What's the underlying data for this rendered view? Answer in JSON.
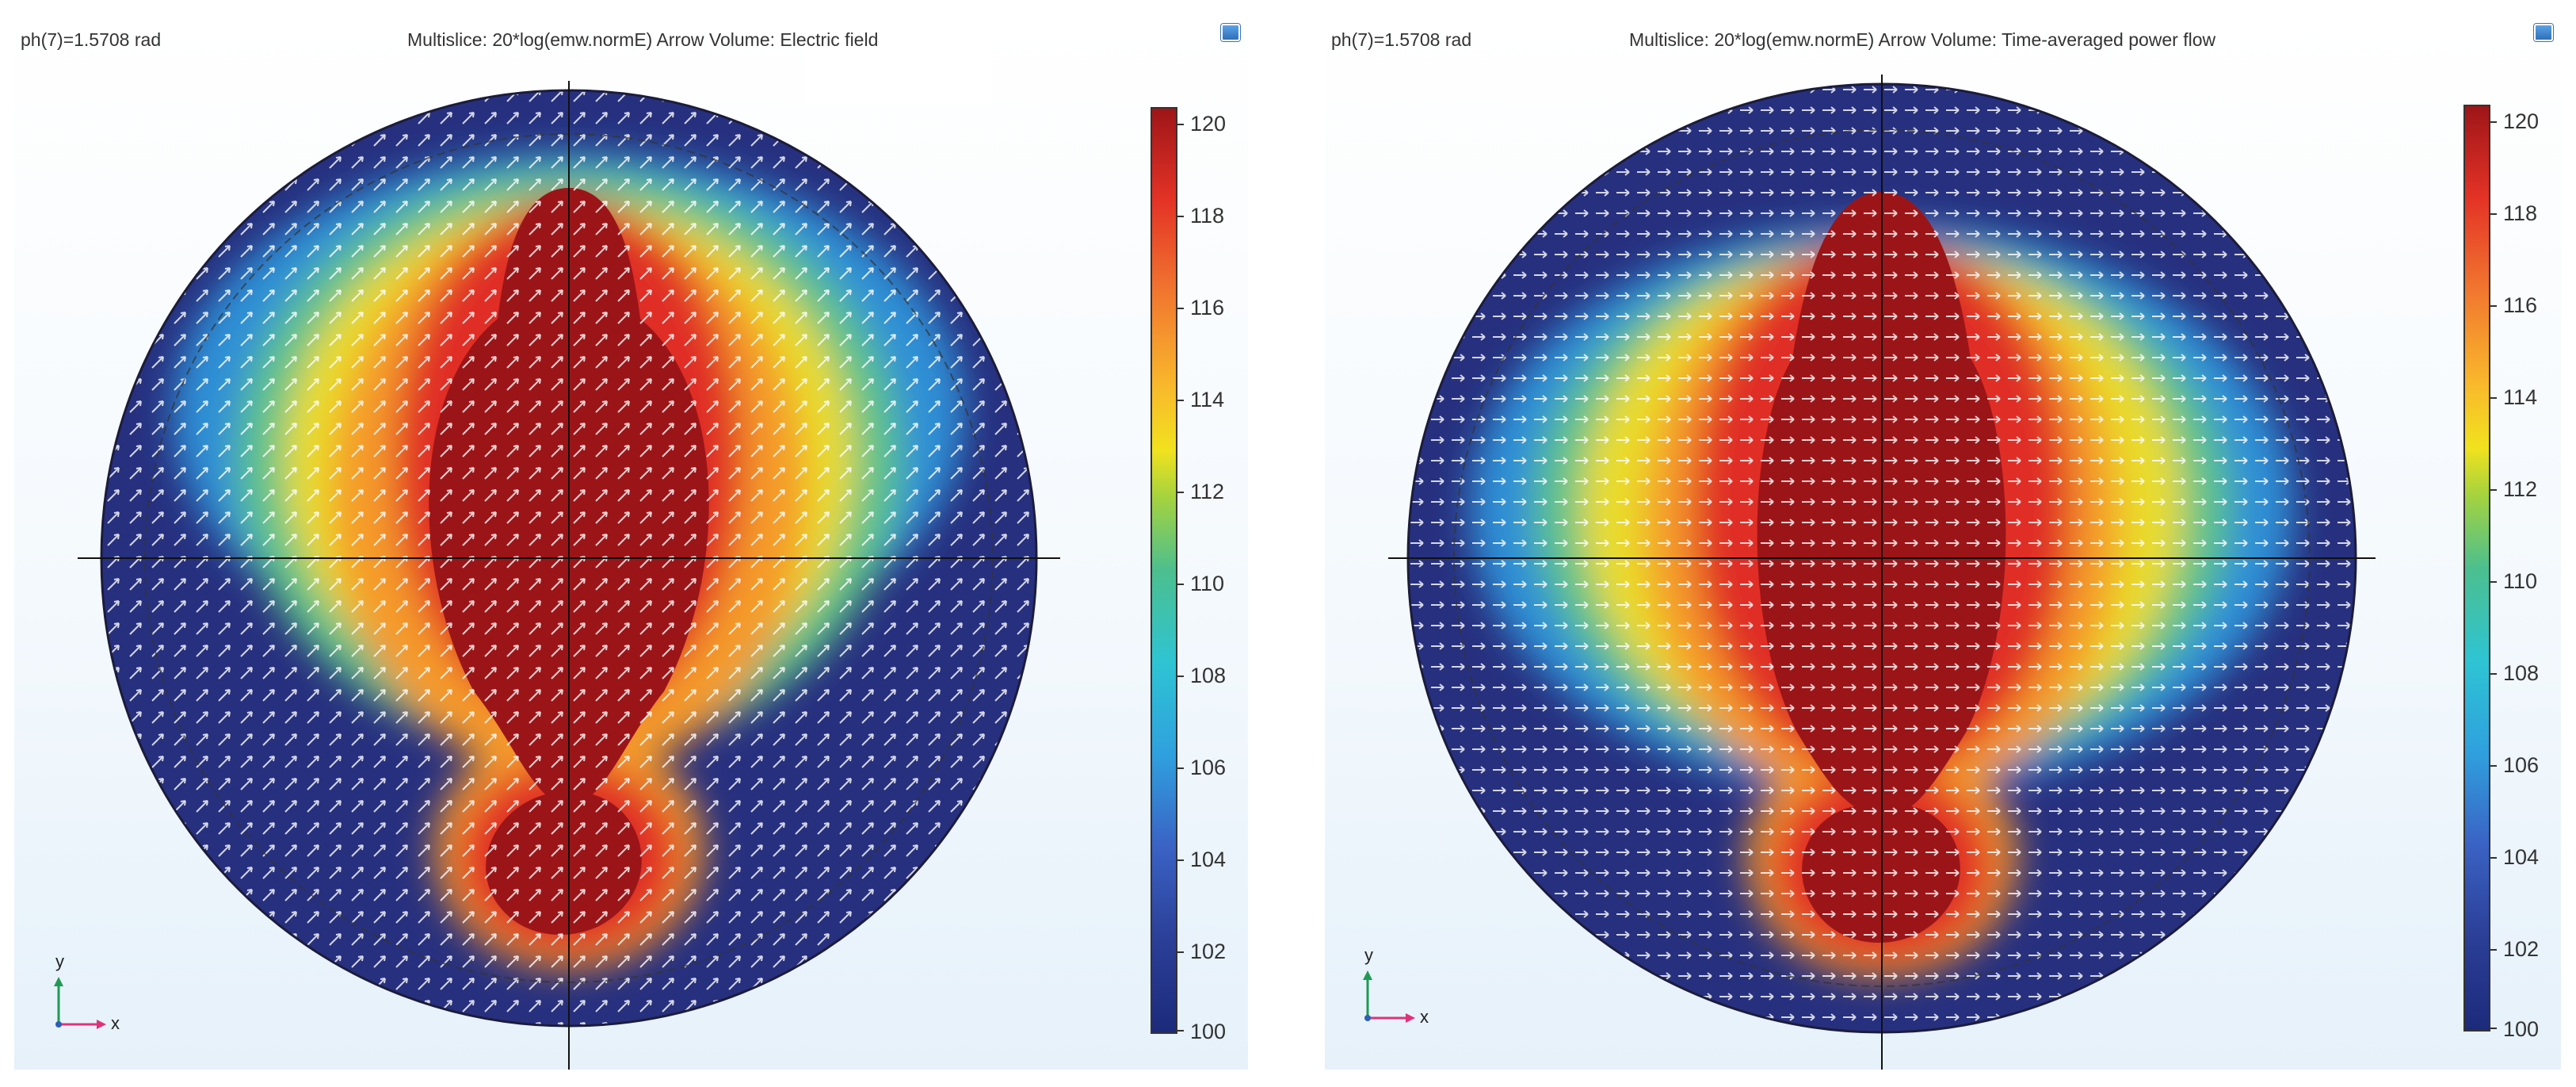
{
  "panels": [
    {
      "param_label": "ph(7)=1.5708 rad",
      "title_prefix": "Multislice: 20*log(emw.normE)  Arrow Volume: ",
      "title_suffix": "Electric field",
      "colorbar_ticks": [
        "120",
        "118",
        "116",
        "114",
        "112",
        "110",
        "108",
        "106",
        "104",
        "102",
        "100"
      ],
      "axis_labels": {
        "y": "y",
        "x": "x"
      }
    },
    {
      "param_label": "ph(7)=1.5708 rad",
      "title_prefix": "Multislice: 20*log(emw.normE)  Arrow Volume: ",
      "title_suffix": "Time-averaged power flow",
      "colorbar_ticks": [
        "120",
        "118",
        "116",
        "114",
        "112",
        "110",
        "108",
        "106",
        "104",
        "102",
        "100"
      ],
      "axis_labels": {
        "y": "y",
        "x": "x"
      }
    }
  ],
  "colorbar_range": [
    100,
    120
  ],
  "colors": {
    "dark_blue": "#26307e",
    "blue": "#2f8fd6",
    "cyan": "#35c2d6",
    "green": "#5cc28a",
    "yellow": "#e9dc2a",
    "orange": "#f59a2c",
    "red": "#e02f25",
    "dark_red": "#9b1518",
    "axis_y": "#1f9a55",
    "axis_x": "#e0317a"
  }
}
